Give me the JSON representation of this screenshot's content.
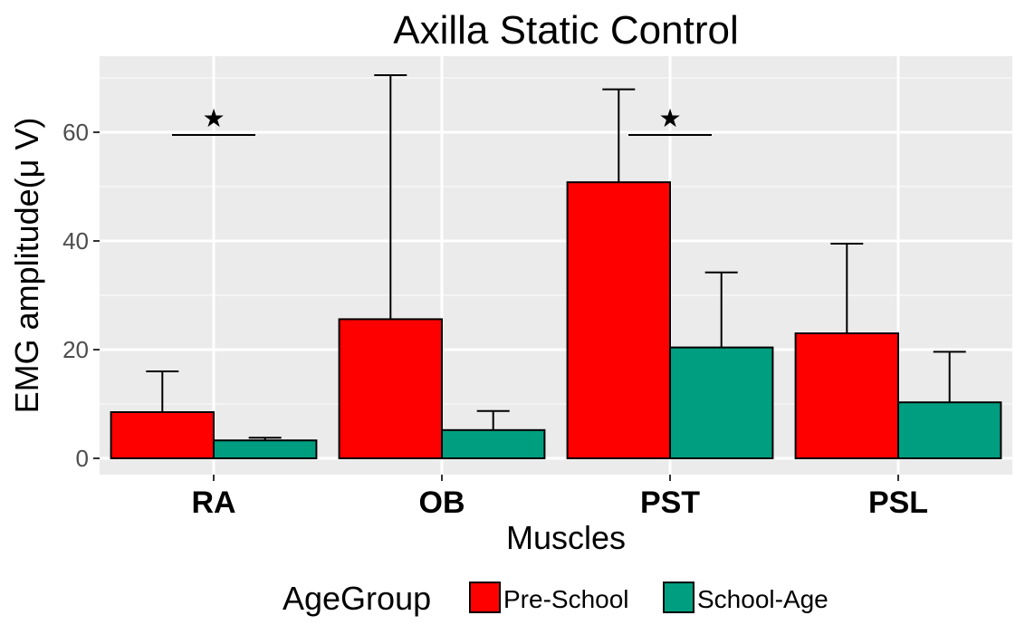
{
  "chart_data": {
    "type": "bar",
    "title": "Axilla Static Control",
    "xlabel": "Muscles",
    "ylabel": "EMG amplitude(μ V)",
    "categories": [
      "RA",
      "OB",
      "PST",
      "PSL"
    ],
    "series": [
      {
        "name": "Pre-School",
        "color": "#ff0000",
        "values": [
          8.5,
          25.6,
          50.8,
          23.0
        ],
        "error_upper": [
          16.0,
          70.5,
          67.9,
          39.5
        ]
      },
      {
        "name": "School-Age",
        "color": "#009e80",
        "values": [
          3.3,
          5.2,
          20.4,
          10.3
        ],
        "error_upper": [
          3.8,
          8.7,
          34.2,
          19.6
        ]
      }
    ],
    "ylim": [
      -3,
      74
    ],
    "yticks": [
      0,
      20,
      40,
      60
    ],
    "grid": true,
    "legend": {
      "title": "AgeGroup",
      "placement": "bottom"
    },
    "annotations": [
      {
        "category": "RA",
        "symbol": "★",
        "bracket_y": 59.5
      },
      {
        "category": "PST",
        "symbol": "★",
        "bracket_y": 59.5
      }
    ]
  }
}
